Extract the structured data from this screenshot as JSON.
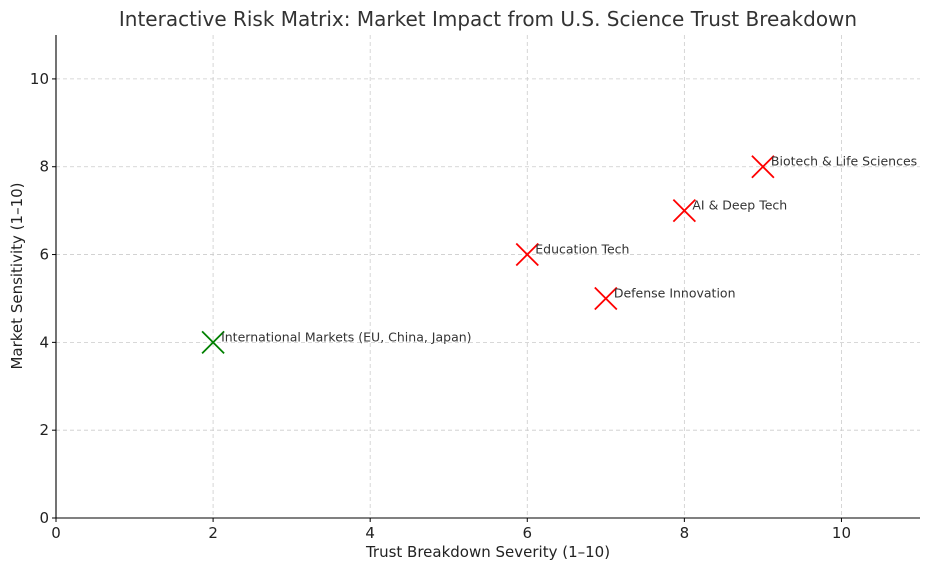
{
  "chart_data": {
    "type": "scatter",
    "title": "Interactive Risk Matrix: Market Impact from U.S. Science Trust Breakdown",
    "xlabel": "Trust Breakdown Severity (1–10)",
    "ylabel": "Market Sensitivity (1–10)",
    "xlim": [
      0,
      11
    ],
    "ylim": [
      0,
      11
    ],
    "xticks": [
      0,
      2,
      4,
      6,
      8,
      10
    ],
    "yticks": [
      0,
      2,
      4,
      6,
      8,
      10
    ],
    "grid": true,
    "marker": "x",
    "colors": {
      "high_risk": "#ff0000",
      "low_risk": "#008000"
    },
    "points": [
      {
        "label": "AI & Deep Tech",
        "x": 8,
        "y": 7,
        "color": "#ff0000"
      },
      {
        "label": "Biotech & Life Sciences",
        "x": 9,
        "y": 8,
        "color": "#ff0000"
      },
      {
        "label": "Defense Innovation",
        "x": 7,
        "y": 5,
        "color": "#ff0000"
      },
      {
        "label": "Education Tech",
        "x": 6,
        "y": 6,
        "color": "#ff0000"
      },
      {
        "label": "International Markets (EU, China, Japan)",
        "x": 2,
        "y": 4,
        "color": "#008000"
      }
    ]
  }
}
